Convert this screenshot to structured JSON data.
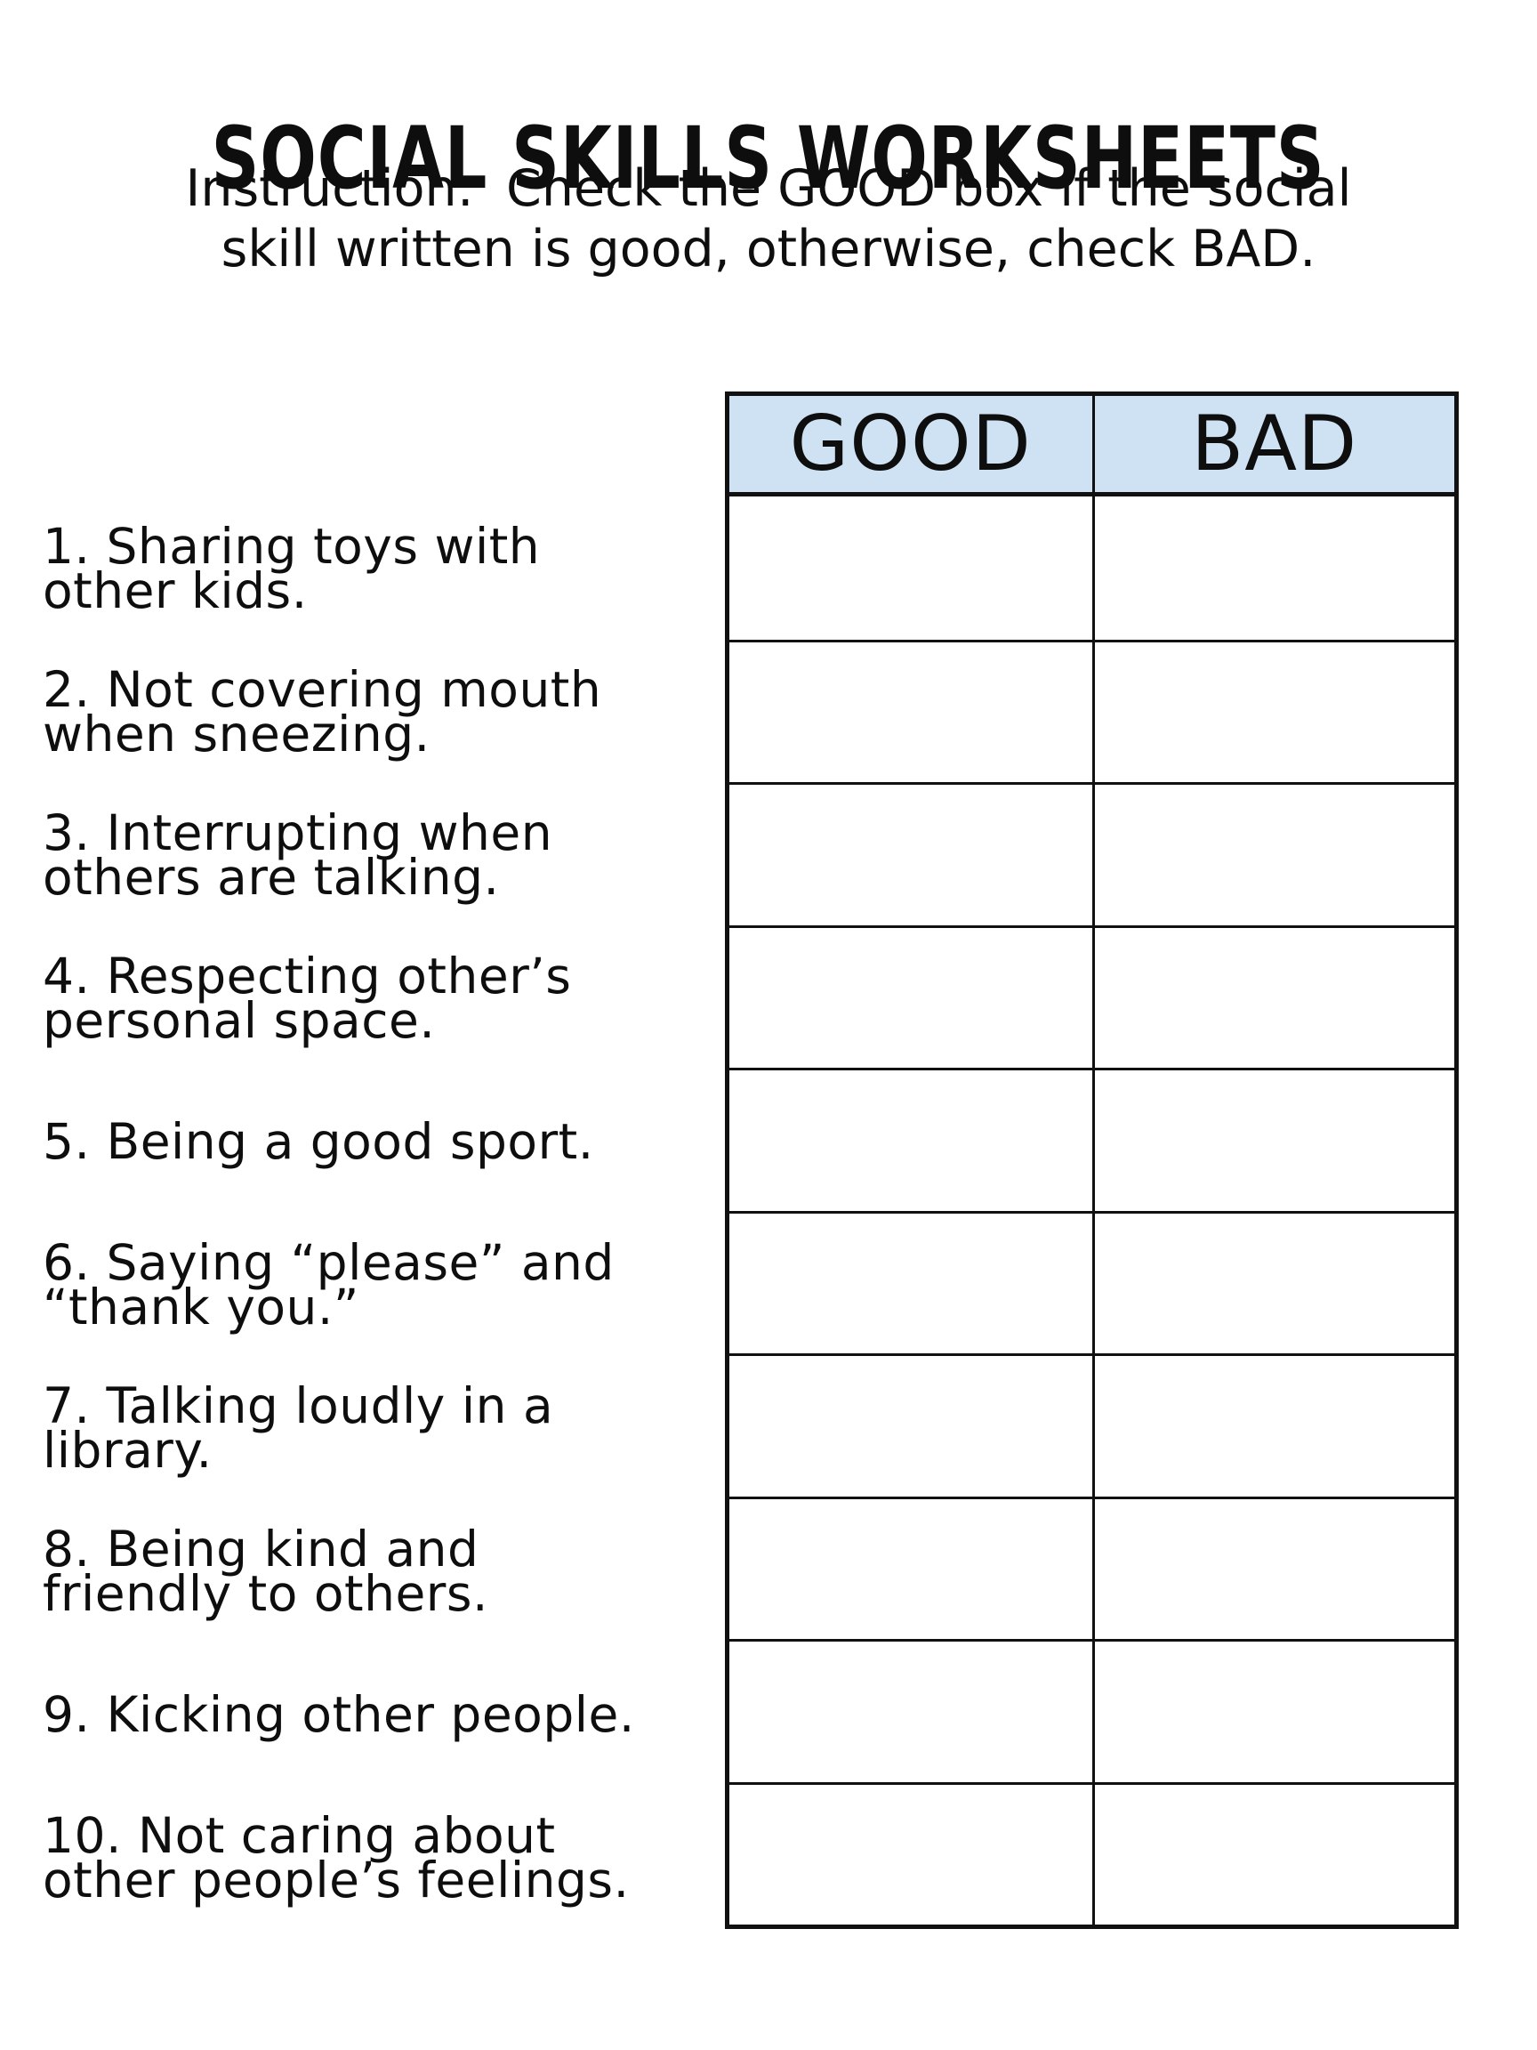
{
  "page": {
    "title": "SOCIAL SKILLS WORKSHEETS",
    "instruction": "Instruction:  Check the GOOD box if the social\nskill written is good, otherwise, check BAD."
  },
  "skills": [
    {
      "text": "1. Sharing toys with\nother kids."
    },
    {
      "text": "2. Not covering mouth\nwhen sneezing."
    },
    {
      "text": "3. Interrupting when\nothers are talking."
    },
    {
      "text": "4. Respecting other’s\npersonal space."
    },
    {
      "text": "5. Being a good sport."
    },
    {
      "text": "6. Saying “please” and\n“thank you.”"
    },
    {
      "text": "7. Talking loudly in a\nlibrary."
    },
    {
      "text": "8. Being kind and\nfriendly to others."
    },
    {
      "text": "9. Kicking other people."
    },
    {
      "text": "10. Not caring about\nother people’s feelings."
    }
  ],
  "table": {
    "good_header": "GOOD",
    "bad_header": "BAD",
    "row_count": 10,
    "header_bg_color": "#cfe2f3",
    "border_color": "#111111",
    "text_color": "#0e0e0e"
  }
}
